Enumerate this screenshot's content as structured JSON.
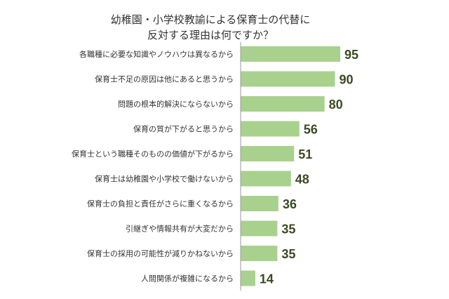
{
  "chart_data": {
    "type": "bar",
    "orientation": "horizontal",
    "title_lines": [
      "幼稚園・小学校教諭による保育士の代替に",
      "反対する理由は何ですか？"
    ],
    "categories": [
      "各職種に必要な知識やノウハウは異なるから",
      "保育士不足の原因は他にあると思うから",
      "問題の根本的解決にならないから",
      "保育の質が下がると思うから",
      "保育士という職種そのものの価値が下がるから",
      "保育士は幼稚園や小学校で働けないから",
      "保育士の負担と責任がさらに重くなるから",
      "引継ぎや情報共有が大変だから",
      "保育士の採用の可能性が減りかねないから",
      "人間関係が複雑になるから"
    ],
    "values": [
      95,
      90,
      80,
      56,
      51,
      48,
      36,
      35,
      35,
      14
    ],
    "xlim": [
      0,
      100
    ],
    "grid": false,
    "bar_color": "#a9d18e",
    "label_color": "#3a4a22"
  }
}
